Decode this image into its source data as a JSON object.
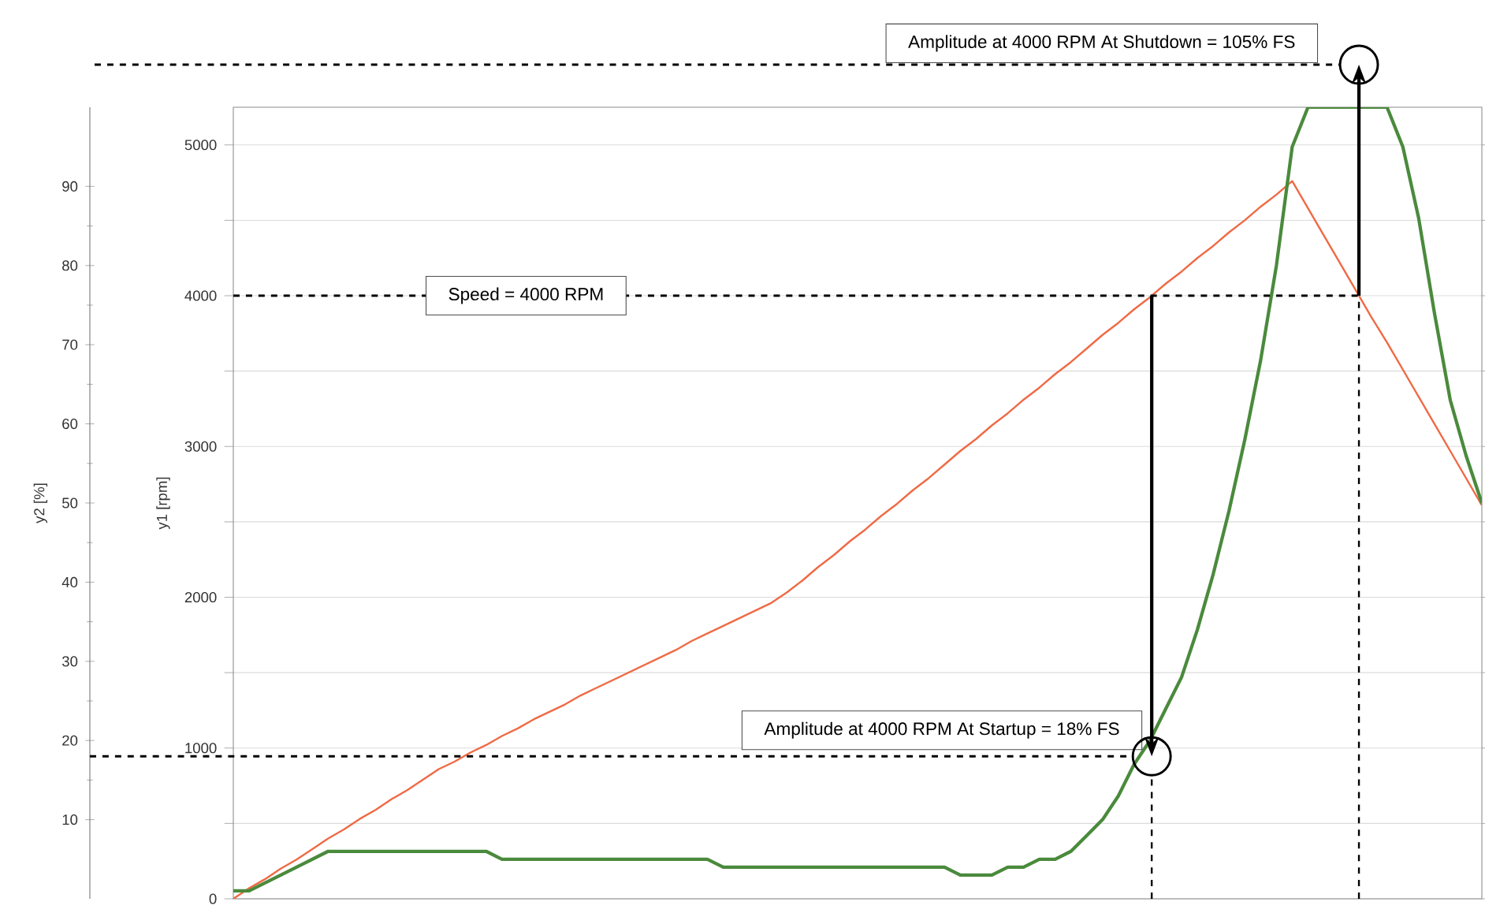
{
  "chart_data": {
    "type": "line",
    "ylabel": "y1 [rpm]",
    "y2label": "y2 [%]",
    "categories": [
      null,
      null,
      null,
      null,
      null,
      null,
      null,
      null,
      null,
      null,
      null,
      null,
      null,
      null,
      null,
      null,
      null,
      null,
      null,
      null,
      null,
      null,
      null,
      null,
      null,
      null,
      null,
      null,
      null,
      null,
      null,
      null,
      null,
      null,
      null,
      null,
      null,
      null,
      null,
      null,
      null,
      null,
      null,
      null,
      null,
      null,
      null,
      null,
      null,
      null,
      null,
      null,
      null,
      null,
      null,
      null,
      null,
      null,
      null,
      null,
      null,
      null,
      null,
      null,
      null,
      null,
      null,
      null,
      null,
      null,
      null,
      null,
      null,
      null,
      null,
      null,
      null,
      null,
      null,
      null
    ],
    "series": [
      {
        "color": "#ef6a45",
        "values": [
          0,
          70,
          130,
          200,
          260,
          330,
          400,
          460,
          530,
          590,
          660,
          720,
          790,
          860,
          910,
          970,
          1020,
          1080,
          1130,
          1190,
          1240,
          1290,
          1350,
          1400,
          1450,
          1500,
          1550,
          1600,
          1650,
          1710,
          1760,
          1810,
          1860,
          1910,
          1960,
          2030,
          2110,
          2200,
          2280,
          2370,
          2450,
          2540,
          2620,
          2710,
          2790,
          2880,
          2970,
          3050,
          3140,
          3220,
          3310,
          3390,
          3480,
          3560,
          3650,
          3740,
          3820,
          3910,
          3990,
          4080,
          4160,
          4250,
          4330,
          4420,
          4500,
          4590,
          4670,
          4760,
          4580,
          4400,
          4220,
          4040,
          3860,
          3690,
          3510,
          3330,
          3150,
          2970,
          2790,
          2610
        ]
      },
      {
        "color": "#4a8a3c",
        "axis": "y2",
        "values": [
          1,
          1,
          2,
          3,
          4,
          5,
          6,
          6,
          6,
          6,
          6,
          6,
          6,
          6,
          6,
          6,
          6,
          5,
          5,
          5,
          5,
          5,
          5,
          5,
          5,
          5,
          5,
          5,
          5,
          5,
          5,
          4,
          4,
          4,
          4,
          4,
          4,
          4,
          4,
          4,
          4,
          4,
          4,
          4,
          4,
          4,
          3,
          3,
          3,
          4,
          4,
          5,
          5,
          6,
          8,
          10,
          13,
          17,
          20,
          24,
          28,
          34,
          41,
          49,
          58,
          68,
          80,
          95,
          100,
          100,
          100,
          100,
          100,
          100,
          95,
          86,
          74,
          63,
          56,
          50
        ]
      }
    ],
    "ylim": [
      0,
      5250
    ],
    "yticks": [
      0,
      {
        "value": 500,
        "label": null
      },
      1000,
      {
        "value": 1500,
        "label": null
      },
      2000,
      {
        "value": 2500,
        "label": null
      },
      3000,
      {
        "value": 3500,
        "label": null
      },
      4000,
      {
        "value": 4500,
        "label": null
      },
      5000
    ],
    "y2lim": [
      0,
      100
    ],
    "y2ticks": [
      10,
      20,
      30,
      40,
      50,
      60,
      70,
      80,
      90
    ],
    "grid": "y",
    "ref_lines": [
      {
        "axis": "y",
        "value": 4000,
        "label": "Speed = 4000 RPM",
        "line_style": "dashed"
      },
      {
        "axis": "y2",
        "value": 18,
        "label": "Amplitude at 4000 RPM At Startup = 18% FS",
        "line_style": "dashed"
      }
    ],
    "annotations": [
      "Amplitude at 4000 RPM At Shutdown = 105% FS"
    ]
  }
}
